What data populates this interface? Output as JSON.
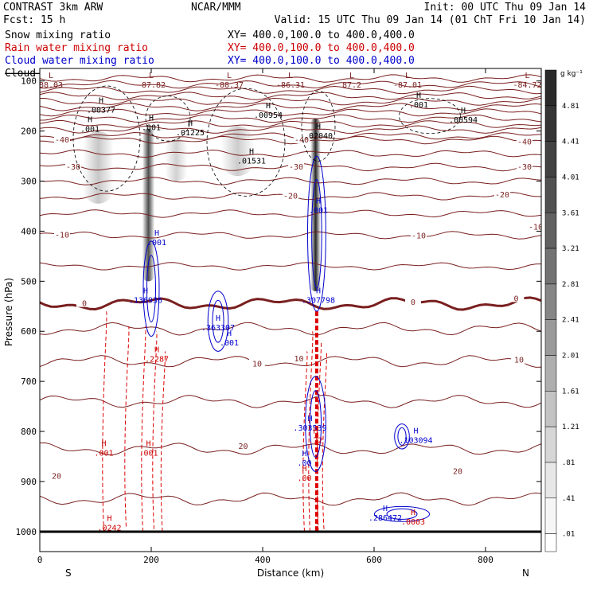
{
  "header": {
    "left_line1": "CONTRAST  3km ARW",
    "left_line2": "Fcst:   15 h",
    "center_title": "NCAR/MMM",
    "init": "Init: 00 UTC Thu 09 Jan 14",
    "valid": "Valid: 15 UTC Thu 09 Jan 14 (01 ChT Fri 10 Jan 14)"
  },
  "fields": [
    {
      "name": "Snow mixing ratio",
      "xy": "XY= 400.0,100.0 to 400.0,400.0",
      "color": "#000000",
      "style": "normal"
    },
    {
      "name": "Rain water mixing ratio",
      "xy": "XY= 400.0,100.0 to 400.0,400.0",
      "color": "#cc0000",
      "style": "normal"
    },
    {
      "name": "Cloud water mixing ratio",
      "xy": "XY= 400.0,100.0 to 400.0,400.0",
      "color": "#0000cc",
      "style": "normal"
    },
    {
      "name": "Cloud ice mixing ratio",
      "xy": "XY= 400.0,100.0 to 400.0,400.0",
      "color": "#000000",
      "style": "strike"
    }
  ],
  "colorbar": {
    "units": "g kg⁻¹",
    "levels": [
      "4.81",
      "4.41",
      "4.01",
      "3.61",
      "3.21",
      "2.81",
      "2.41",
      "2.01",
      "1.61",
      "1.21",
      ".81",
      ".41",
      ".01"
    ],
    "shades": [
      "#2a2a2a",
      "#353535",
      "#424242",
      "#515151",
      "#616161",
      "#737373",
      "#868686",
      "#9a9a9a",
      "#aeaeae",
      "#c3c3c3",
      "#d6d6d6",
      "#e7e7e7",
      "#f6f6f6"
    ]
  },
  "axes": {
    "ylabel": "Pressure (hPa)",
    "xlabel": "Distance (km)",
    "left_end": "S",
    "right_end": "N"
  },
  "colors": {
    "temperature": "#7a1f1f",
    "rain": "#dd0000",
    "cloud_water": "#0000cc",
    "snow": "#000000"
  },
  "chart_data": {
    "type": "cross-section",
    "xlim": [
      0,
      900
    ],
    "ylim": [
      1000,
      75
    ],
    "xticks": [
      0,
      200,
      400,
      600,
      800
    ],
    "yticks": [
      100,
      200,
      300,
      400,
      500,
      600,
      700,
      800,
      900,
      1000
    ],
    "terrain_hpa": 1010,
    "temperature_isotherms": [
      {
        "value": -84.72,
        "p": 95
      },
      {
        "value": -80,
        "p": 107
      },
      {
        "value": -76,
        "p": 118
      },
      {
        "value": -72,
        "p": 130
      },
      {
        "value": -68,
        "p": 141
      },
      {
        "value": -64,
        "p": 152
      },
      {
        "value": -60,
        "p": 163
      },
      {
        "value": -56,
        "p": 175
      },
      {
        "value": -52,
        "p": 186
      },
      {
        "value": -48,
        "p": 197
      },
      {
        "value": -44,
        "p": 210
      },
      {
        "value": -40,
        "p": 218
      },
      {
        "value": -35,
        "p": 245
      },
      {
        "value": -30,
        "p": 272
      },
      {
        "value": -25,
        "p": 300
      },
      {
        "value": -20,
        "p": 330
      },
      {
        "value": -15,
        "p": 365
      },
      {
        "value": -10,
        "p": 408
      },
      {
        "value": -5,
        "p": 470
      },
      {
        "value": 0,
        "p": 545
      },
      {
        "value": 5,
        "p": 595
      },
      {
        "value": 10,
        "p": 660
      },
      {
        "value": 15,
        "p": 740
      },
      {
        "value": 20,
        "p": 835
      },
      {
        "value": 25,
        "p": 935
      }
    ],
    "temperature_labels": [
      {
        "text": "-40",
        "x": 40,
        "p": 218
      },
      {
        "text": "-40",
        "x": 470,
        "p": 218
      },
      {
        "text": "-40",
        "x": 870,
        "p": 222
      },
      {
        "text": "-30",
        "x": 60,
        "p": 272
      },
      {
        "text": "-30",
        "x": 460,
        "p": 272
      },
      {
        "text": "-30",
        "x": 870,
        "p": 272
      },
      {
        "text": "-20",
        "x": 450,
        "p": 330
      },
      {
        "text": "-20",
        "x": 830,
        "p": 328
      },
      {
        "text": "-10",
        "x": 40,
        "p": 408
      },
      {
        "text": "-10",
        "x": 680,
        "p": 410
      },
      {
        "text": "-10",
        "x": 890,
        "p": 392
      },
      {
        "text": "0",
        "x": 80,
        "p": 545
      },
      {
        "text": "0",
        "x": 670,
        "p": 542
      },
      {
        "text": "0",
        "x": 855,
        "p": 535
      },
      {
        "text": "10",
        "x": 465,
        "p": 655
      },
      {
        "text": "10",
        "x": 390,
        "p": 666
      },
      {
        "text": "10",
        "x": 860,
        "p": 658
      },
      {
        "text": "20",
        "x": 365,
        "p": 830
      },
      {
        "text": "20",
        "x": 30,
        "p": 890
      },
      {
        "text": "20",
        "x": 750,
        "p": 880
      }
    ],
    "extrema": [
      {
        "kind": "L",
        "text": "88.03",
        "x": 20,
        "p": 110,
        "color": "#7a1f1f"
      },
      {
        "kind": "L",
        "text": "-87.82",
        "x": 200,
        "p": 110,
        "color": "#7a1f1f"
      },
      {
        "kind": "L",
        "text": "-88.37",
        "x": 340,
        "p": 110,
        "color": "#7a1f1f"
      },
      {
        "kind": "L",
        "text": "-86.31",
        "x": 450,
        "p": 110,
        "color": "#7a1f1f"
      },
      {
        "kind": "L",
        "text": "87.2",
        "x": 560,
        "p": 110,
        "color": "#7a1f1f"
      },
      {
        "kind": "L",
        "text": "-87.01",
        "x": 660,
        "p": 110,
        "color": "#7a1f1f"
      },
      {
        "kind": "L",
        "text": "-84.72",
        "x": 875,
        "p": 110,
        "color": "#7a1f1f"
      },
      {
        "kind": "H",
        "text": ".00377",
        "x": 110,
        "p": 160,
        "color": "#000000"
      },
      {
        "kind": "H",
        "text": ".001",
        "x": 90,
        "p": 198,
        "color": "#000000"
      },
      {
        "kind": "H",
        "text": ".001",
        "x": 200,
        "p": 195,
        "color": "#000000"
      },
      {
        "kind": "H",
        "text": ".01225",
        "x": 270,
        "p": 205,
        "color": "#000000"
      },
      {
        "kind": "H",
        "text": ".00954",
        "x": 410,
        "p": 170,
        "color": "#000000"
      },
      {
        "kind": "H",
        "text": ".001",
        "x": 680,
        "p": 150,
        "color": "#000000"
      },
      {
        "kind": "H",
        "text": ".00594",
        "x": 760,
        "p": 180,
        "color": "#000000"
      },
      {
        "kind": "H",
        "text": ".02040",
        "x": 500,
        "p": 212,
        "color": "#000000"
      },
      {
        "kind": "H",
        "text": ".01531",
        "x": 380,
        "p": 262,
        "color": "#000000"
      },
      {
        "kind": "H",
        "text": ".001",
        "x": 500,
        "p": 360,
        "color": "#0000cc"
      },
      {
        "kind": "H",
        "text": ".001",
        "x": 210,
        "p": 425,
        "color": "#0000cc"
      },
      {
        "kind": "H",
        "text": ".136936",
        "x": 190,
        "p": 540,
        "color": "#0000cc"
      },
      {
        "kind": "H",
        "text": ".307798",
        "x": 500,
        "p": 540,
        "color": "#0000cc"
      },
      {
        "kind": "H",
        "text": ".363307",
        "x": 320,
        "p": 595,
        "color": "#0000cc"
      },
      {
        "kind": "H",
        "text": ".001",
        "x": 340,
        "p": 625,
        "color": "#0000cc"
      },
      {
        "kind": "H",
        "text": ".2287",
        "x": 210,
        "p": 658,
        "color": "#cc0000"
      },
      {
        "kind": "H",
        "text": ".303539",
        "x": 485,
        "p": 795,
        "color": "#0000cc"
      },
      {
        "kind": "H",
        "text": ".72",
        "x": 495,
        "p": 820,
        "color": "#cc0000"
      },
      {
        "kind": "H",
        "text": ".103094",
        "x": 675,
        "p": 820,
        "color": "#0000cc"
      },
      {
        "kind": "H",
        "text": ".001",
        "x": 115,
        "p": 845,
        "color": "#cc0000"
      },
      {
        "kind": "H",
        "text": ".001",
        "x": 195,
        "p": 845,
        "color": "#cc0000"
      },
      {
        "kind": "H",
        "text": ".00",
        "x": 475,
        "p": 865,
        "color": "#0000cc"
      },
      {
        "kind": "H",
        "text": ".00",
        "x": 475,
        "p": 895,
        "color": "#cc0000"
      },
      {
        "kind": "H",
        "text": ".286472",
        "x": 620,
        "p": 975,
        "color": "#0000cc"
      },
      {
        "kind": "H",
        "text": ".0003",
        "x": 670,
        "p": 983,
        "color": "#cc0000"
      },
      {
        "kind": "H",
        "text": ".0242",
        "x": 125,
        "p": 995,
        "color": "#cc0000"
      }
    ],
    "snow_shading": [
      {
        "x": 105,
        "p_top": 200,
        "p_bot": 345,
        "width_km": 55,
        "intensity": 0.22
      },
      {
        "x": 195,
        "p_top": 195,
        "p_bot": 500,
        "width_km": 22,
        "intensity": 0.7
      },
      {
        "x": 245,
        "p_top": 215,
        "p_bot": 300,
        "width_km": 40,
        "intensity": 0.18
      },
      {
        "x": 355,
        "p_top": 190,
        "p_bot": 290,
        "width_km": 60,
        "intensity": 0.2
      },
      {
        "x": 495,
        "p_top": 175,
        "p_bot": 520,
        "width_km": 18,
        "intensity": 0.85
      }
    ]
  }
}
